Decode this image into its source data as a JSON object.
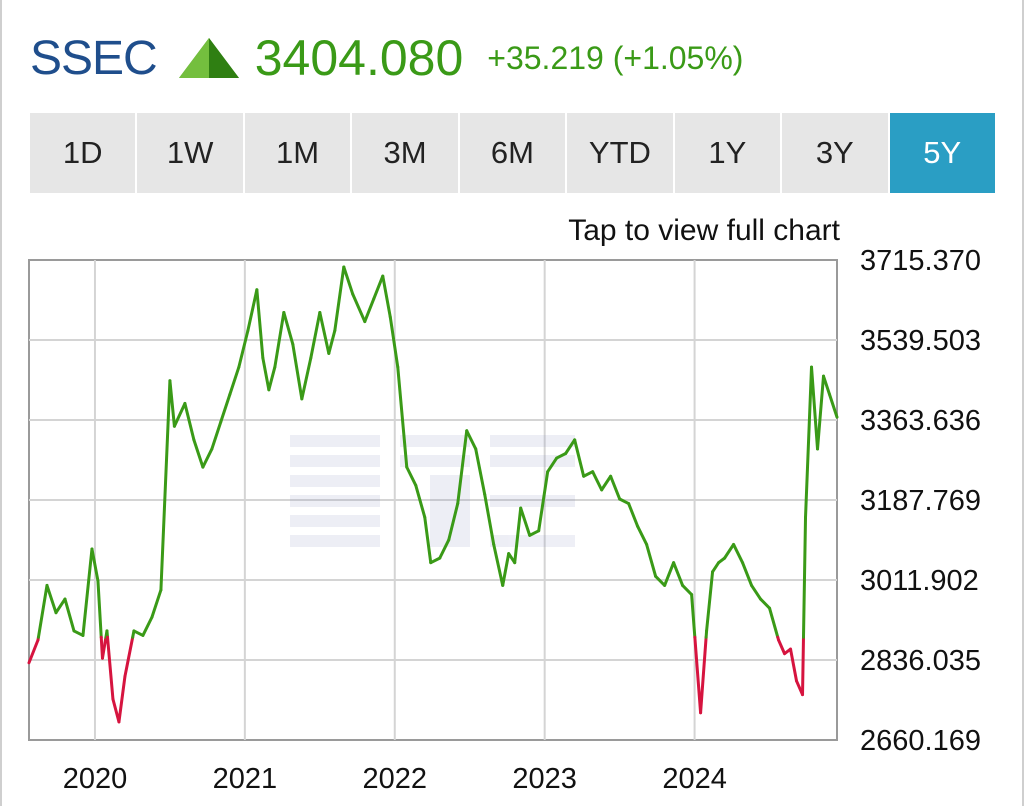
{
  "quote": {
    "symbol": "SSEC",
    "price": "3404.080",
    "change": "+35.219 (+1.05%)",
    "direction_icon": "triangle-up-icon"
  },
  "tabs": [
    {
      "label": "1D",
      "active": false
    },
    {
      "label": "1W",
      "active": false
    },
    {
      "label": "1M",
      "active": false
    },
    {
      "label": "3M",
      "active": false
    },
    {
      "label": "6M",
      "active": false
    },
    {
      "label": "YTD",
      "active": false
    },
    {
      "label": "1Y",
      "active": false
    },
    {
      "label": "3Y",
      "active": false
    },
    {
      "label": "5Y",
      "active": true
    }
  ],
  "hint": "Tap to view full chart",
  "colors": {
    "symbol": "#1f4e8c",
    "up": "#3a9a17",
    "down": "#d6143f",
    "active_tab": "#2a9ec4",
    "tab_bg": "#e6e6e6"
  },
  "chart_data": {
    "type": "line",
    "baseline": 2886,
    "ylim": [
      2660.169,
      3715.37
    ],
    "y_ticks": [
      "3715.370",
      "3539.503",
      "3363.636",
      "3187.769",
      "3011.902",
      "2836.035",
      "2660.169"
    ],
    "x_ticks": [
      "2020",
      "2021",
      "2022",
      "2023",
      "2024"
    ],
    "x_tick_years": [
      2020,
      2021,
      2022,
      2023,
      2024
    ],
    "xlim": [
      2019.56,
      2024.95
    ],
    "grid": true,
    "above_baseline_color": "#3a9a17",
    "below_baseline_color": "#d6143f",
    "x": [
      2019.56,
      2019.62,
      2019.68,
      2019.74,
      2019.8,
      2019.86,
      2019.92,
      2019.98,
      2020.02,
      2020.05,
      2020.08,
      2020.12,
      2020.16,
      2020.2,
      2020.26,
      2020.32,
      2020.38,
      2020.44,
      2020.5,
      2020.53,
      2020.6,
      2020.66,
      2020.72,
      2020.78,
      2020.84,
      2020.9,
      2020.96,
      2021.02,
      2021.08,
      2021.12,
      2021.16,
      2021.2,
      2021.26,
      2021.32,
      2021.38,
      2021.44,
      2021.5,
      2021.56,
      2021.6,
      2021.66,
      2021.72,
      2021.8,
      2021.86,
      2021.92,
      2021.97,
      2022.02,
      2022.08,
      2022.14,
      2022.2,
      2022.24,
      2022.3,
      2022.36,
      2022.42,
      2022.48,
      2022.54,
      2022.6,
      2022.66,
      2022.72,
      2022.76,
      2022.8,
      2022.84,
      2022.9,
      2022.96,
      2023.02,
      2023.08,
      2023.14,
      2023.2,
      2023.26,
      2023.32,
      2023.38,
      2023.44,
      2023.5,
      2023.56,
      2023.62,
      2023.68,
      2023.74,
      2023.8,
      2023.86,
      2023.92,
      2023.98,
      2024.04,
      2024.08,
      2024.12,
      2024.16,
      2024.2,
      2024.26,
      2024.32,
      2024.38,
      2024.44,
      2024.5,
      2024.56,
      2024.6,
      2024.64,
      2024.68,
      2024.72,
      2024.74,
      2024.78,
      2024.82,
      2024.86,
      2024.9,
      2024.95
    ],
    "y": [
      2830,
      2880,
      3000,
      2940,
      2970,
      2900,
      2890,
      3080,
      3010,
      2840,
      2900,
      2750,
      2700,
      2800,
      2900,
      2890,
      2930,
      2990,
      3450,
      3350,
      3400,
      3320,
      3260,
      3300,
      3360,
      3420,
      3480,
      3560,
      3650,
      3500,
      3430,
      3480,
      3600,
      3530,
      3410,
      3500,
      3600,
      3510,
      3560,
      3700,
      3640,
      3580,
      3630,
      3680,
      3590,
      3480,
      3260,
      3220,
      3150,
      3050,
      3060,
      3100,
      3180,
      3340,
      3300,
      3200,
      3090,
      3000,
      3070,
      3050,
      3170,
      3110,
      3120,
      3250,
      3280,
      3290,
      3320,
      3240,
      3250,
      3210,
      3240,
      3190,
      3180,
      3130,
      3090,
      3020,
      3000,
      3050,
      3000,
      2980,
      2720,
      2900,
      3030,
      3050,
      3060,
      3090,
      3050,
      3000,
      2970,
      2950,
      2880,
      2850,
      2860,
      2790,
      2760,
      3150,
      3480,
      3300,
      3460,
      3420,
      3370
    ]
  }
}
